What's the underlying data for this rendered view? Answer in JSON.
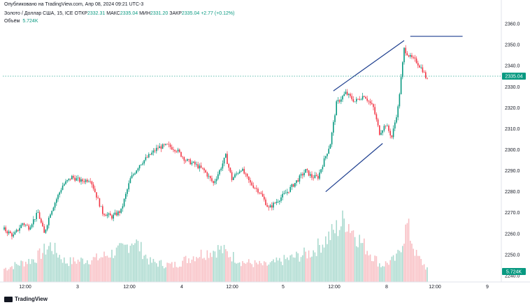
{
  "header": {
    "published": "Опубликовано на TradingView.com, Апр 08, 2024 09:21 UTC-3"
  },
  "symbol": {
    "name": "Золото / Доллар США, 15, ICE",
    "open_label": "ОТКР",
    "open": "2332.31",
    "high_label": "МАКС",
    "high": "2335.04",
    "low_label": "МИН",
    "low": "2331.20",
    "close_label": "ЗАКР",
    "close": "2335.04",
    "change": "+2.77 (+0.12%)"
  },
  "volume": {
    "label": "Объём",
    "value": "5.724K"
  },
  "footer": {
    "brand": "TradingView"
  },
  "colors": {
    "up": "#089981",
    "down": "#f23645",
    "drawing": "#2962ff",
    "line": "#1e3f8f"
  },
  "chart_data": {
    "type": "candlestick",
    "ylim": [
      2237,
      2364
    ],
    "y_ticks": [
      2240,
      2250,
      2260,
      2270,
      2280,
      2290,
      2300,
      2310,
      2320,
      2330,
      2340,
      2350,
      2360
    ],
    "x_ticks": [
      "12:00",
      "3",
      "12:00",
      "4",
      "12:00",
      "5",
      "12:00",
      "8",
      "12:00",
      "9"
    ],
    "price_label": "2335.04",
    "volume_label": "5.724K",
    "key_points": [
      [
        0,
        2262
      ],
      [
        6,
        2259
      ],
      [
        12,
        2265
      ],
      [
        16,
        2263
      ],
      [
        22,
        2270
      ],
      [
        26,
        2260
      ],
      [
        30,
        2270
      ],
      [
        38,
        2283
      ],
      [
        44,
        2287
      ],
      [
        50,
        2285
      ],
      [
        56,
        2286
      ],
      [
        60,
        2278
      ],
      [
        64,
        2270
      ],
      [
        70,
        2268
      ],
      [
        76,
        2271
      ],
      [
        82,
        2286
      ],
      [
        88,
        2293
      ],
      [
        94,
        2297
      ],
      [
        100,
        2301
      ],
      [
        106,
        2302
      ],
      [
        112,
        2300
      ],
      [
        118,
        2295
      ],
      [
        124,
        2293
      ],
      [
        130,
        2290
      ],
      [
        136,
        2284
      ],
      [
        140,
        2290
      ],
      [
        144,
        2297
      ],
      [
        148,
        2286
      ],
      [
        154,
        2291
      ],
      [
        160,
        2284
      ],
      [
        166,
        2280
      ],
      [
        172,
        2272
      ],
      [
        178,
        2276
      ],
      [
        184,
        2280
      ],
      [
        190,
        2285
      ],
      [
        196,
        2290
      ],
      [
        200,
        2287
      ],
      [
        204,
        2287
      ],
      [
        208,
        2295
      ],
      [
        212,
        2303
      ],
      [
        216,
        2322
      ],
      [
        222,
        2327
      ],
      [
        228,
        2323
      ],
      [
        234,
        2326
      ],
      [
        240,
        2320
      ],
      [
        244,
        2308
      ],
      [
        248,
        2312
      ],
      [
        252,
        2306
      ],
      [
        256,
        2320
      ],
      [
        260,
        2348
      ],
      [
        264,
        2344
      ],
      [
        268,
        2342
      ],
      [
        272,
        2338
      ],
      [
        275,
        2333
      ]
    ],
    "volume_profile": [
      [
        0,
        0.2
      ],
      [
        20,
        0.35
      ],
      [
        30,
        0.55
      ],
      [
        40,
        0.3
      ],
      [
        60,
        0.35
      ],
      [
        78,
        0.5
      ],
      [
        84,
        0.65
      ],
      [
        95,
        0.3
      ],
      [
        110,
        0.25
      ],
      [
        124,
        0.4
      ],
      [
        140,
        0.5
      ],
      [
        155,
        0.3
      ],
      [
        170,
        0.25
      ],
      [
        185,
        0.35
      ],
      [
        200,
        0.45
      ],
      [
        212,
        0.7
      ],
      [
        222,
        0.95
      ],
      [
        232,
        0.6
      ],
      [
        245,
        0.25
      ],
      [
        255,
        0.35
      ],
      [
        262,
        0.85
      ],
      [
        268,
        0.4
      ],
      [
        275,
        0.2
      ]
    ],
    "drawings": [
      {
        "type": "trendline",
        "from": [
          209,
          2280
        ],
        "to": [
          246,
          2303
        ]
      },
      {
        "type": "trendline",
        "from": [
          214,
          2328
        ],
        "to": [
          260,
          2352
        ]
      },
      {
        "type": "horizontal",
        "from": [
          264,
          2354
        ],
        "to": [
          298,
          2354
        ]
      }
    ]
  }
}
